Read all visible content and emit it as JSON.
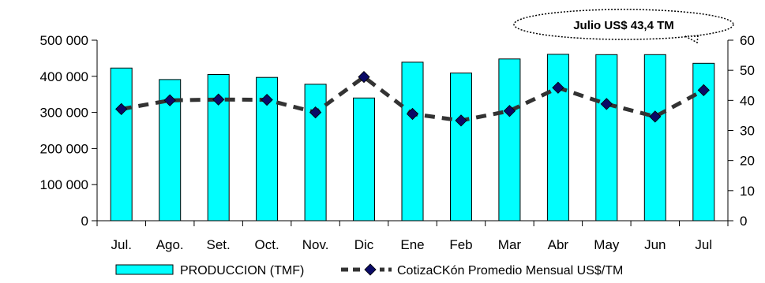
{
  "chart_data": {
    "type": "bar",
    "categories": [
      "Jul.",
      "Ago.",
      "Set.",
      "Oct.",
      "Nov.",
      "Dic",
      "Ene",
      "Feb",
      "Mar",
      "Abr",
      "May",
      "Jun",
      "Jul"
    ],
    "series": [
      {
        "name": "PRODUCCION (TMF)",
        "type": "bar",
        "axis": "left",
        "values": [
          423000,
          391000,
          405000,
          397000,
          378000,
          340000,
          439000,
          409000,
          448000,
          461000,
          460000,
          460000,
          436000
        ]
      },
      {
        "name": "CotizaCKón Promedio Mensual US$/TM",
        "type": "line",
        "axis": "right",
        "values": [
          37.1,
          40.0,
          40.3,
          40.2,
          36.0,
          47.8,
          35.5,
          33.3,
          36.5,
          44.2,
          38.8,
          34.6,
          43.4
        ]
      }
    ],
    "y_left": {
      "ylim": [
        0,
        500000
      ],
      "ticks": [
        0,
        100000,
        200000,
        300000,
        400000,
        500000
      ],
      "tick_labels": [
        "0",
        "100 000",
        "200 000",
        "300 000",
        "400 000",
        "500 000"
      ]
    },
    "y_right": {
      "ylim": [
        0,
        60
      ],
      "ticks": [
        0,
        10,
        20,
        30,
        40,
        50,
        60
      ],
      "tick_labels": [
        "0",
        "10",
        "20",
        "30",
        "40",
        "50",
        "60"
      ]
    },
    "annotation": "Julio US$ 43,4 TM",
    "legend_position": "bottom",
    "grid": false,
    "colors": {
      "bar_fill": "#00FFFF",
      "bar_stroke": "#000000",
      "line": "#333333",
      "marker": "#0A0A66"
    }
  }
}
